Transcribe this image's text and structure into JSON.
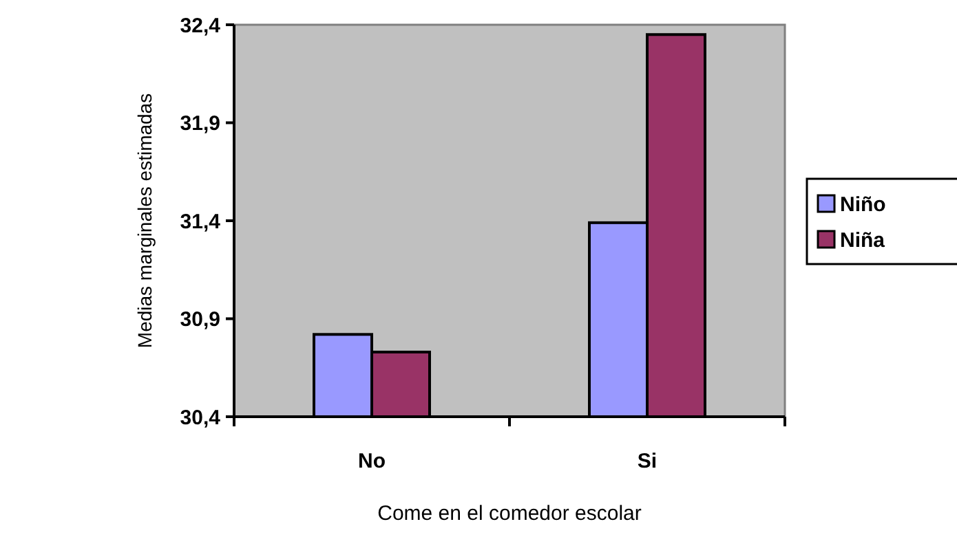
{
  "chart_data": {
    "type": "bar",
    "xlabel": "Come en el comedor escolar",
    "ylabel": "Medias marginales estimadas",
    "categories": [
      "No",
      "Si"
    ],
    "series": [
      {
        "name": "Niño",
        "color": "#9999ff",
        "values": [
          30.82,
          31.39
        ]
      },
      {
        "name": "Niña",
        "color": "#993366",
        "values": [
          30.73,
          32.35
        ]
      }
    ],
    "ylim": [
      30.4,
      32.4
    ],
    "yticks": [
      {
        "value": 30.4,
        "label": "30,4"
      },
      {
        "value": 30.9,
        "label": "30,9"
      },
      {
        "value": 31.4,
        "label": "31,4"
      },
      {
        "value": 31.9,
        "label": "31,9"
      },
      {
        "value": 32.4,
        "label": "32,4"
      }
    ],
    "grid": false,
    "legend": "right"
  }
}
